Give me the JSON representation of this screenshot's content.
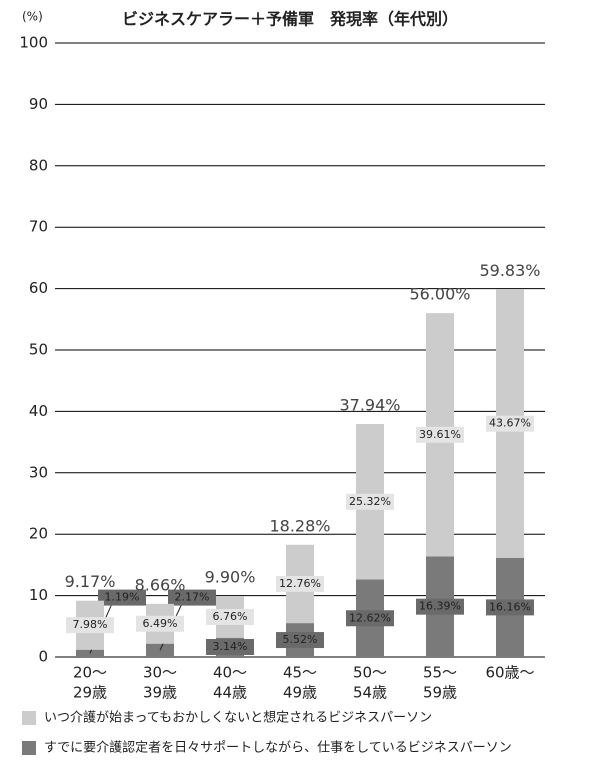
{
  "chart_data": {
    "type": "stacked_bar",
    "title": "ビジネスケアラー＋予備軍　発現率（年代別）",
    "y_label": "(%)",
    "categories": [
      [
        "20～",
        "29歳"
      ],
      [
        "30～",
        "39歳"
      ],
      [
        "40～",
        "44歳"
      ],
      [
        "45～",
        "49歳"
      ],
      [
        "50～",
        "54歳"
      ],
      [
        "55～",
        "59歳"
      ],
      [
        "60歳～"
      ]
    ],
    "series": [
      {
        "name": "すでに要介護認定者を日々サポートしながら、仕事をしているビジネスパーソン",
        "color": "#7a7a7a",
        "values": [
          1.19,
          2.17,
          3.14,
          5.52,
          12.62,
          16.39,
          16.16
        ],
        "value_labels": [
          "1.19%",
          "2.17%",
          "3.14%",
          "5.52%",
          "12.62%",
          "16.39%",
          "16.16%"
        ]
      },
      {
        "name": "いつ介護が始まってもおかしくないと想定されるビジネスパーソン",
        "color": "#cccccc",
        "values": [
          7.98,
          6.49,
          6.76,
          12.76,
          25.32,
          39.61,
          43.67
        ],
        "value_labels": [
          "7.98%",
          "6.49%",
          "6.76%",
          "12.76%",
          "25.32%",
          "39.61%",
          "43.67%"
        ]
      }
    ],
    "totals": {
      "values": [
        9.17,
        8.66,
        9.9,
        18.28,
        37.94,
        56.0,
        59.83
      ],
      "value_labels": [
        "9.17%",
        "8.66%",
        "9.90%",
        "18.28%",
        "37.94%",
        "56.00%",
        "59.83%"
      ]
    },
    "ylim": [
      0,
      100
    ],
    "yticks": [
      0,
      10,
      20,
      30,
      40,
      50,
      60,
      70,
      80,
      90,
      100
    ],
    "grid": true
  }
}
